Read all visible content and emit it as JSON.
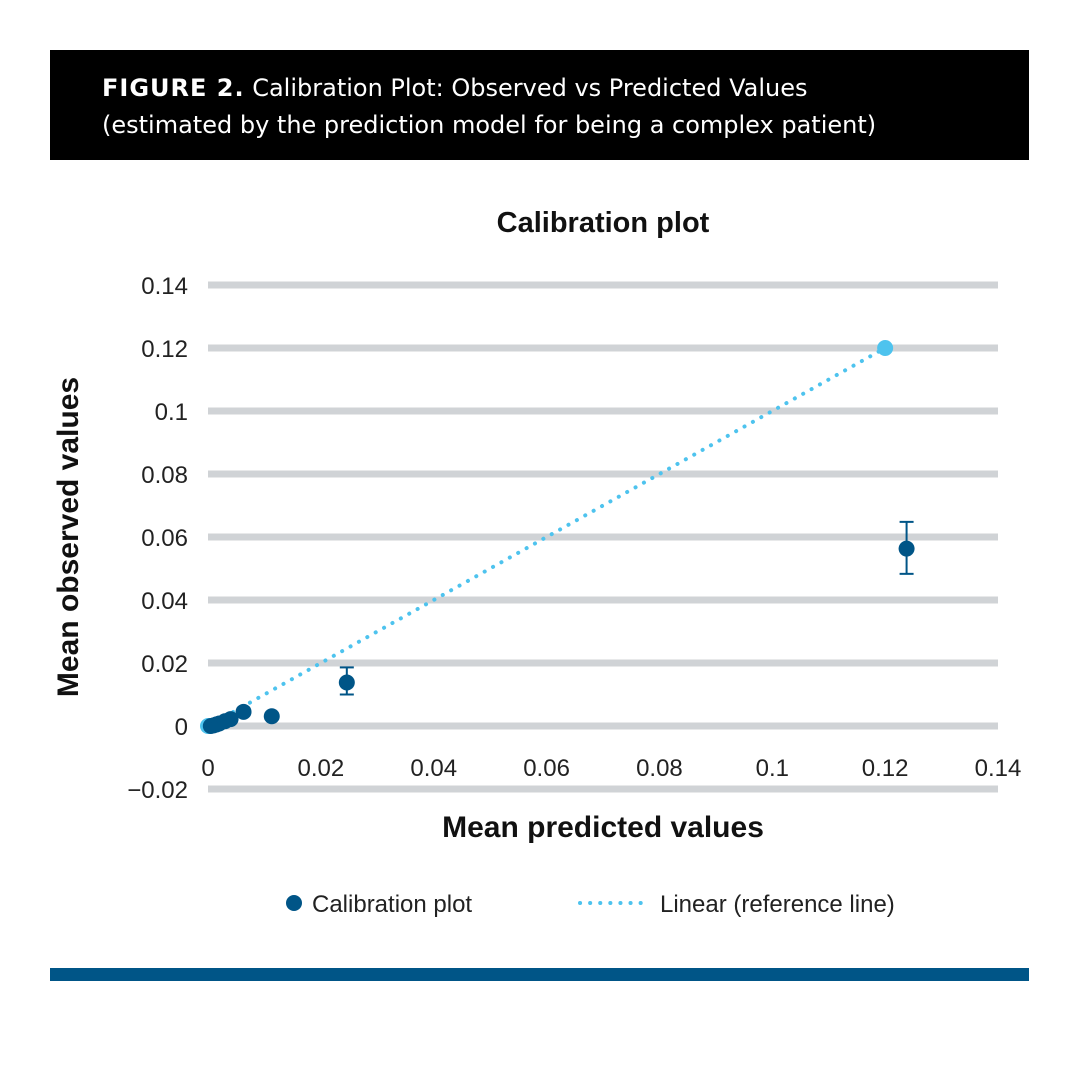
{
  "header": {
    "figure_label": "FIGURE 2.",
    "title": "Calibration Plot: Observed vs Predicted Values",
    "subtitle": "(estimated by the prediction model for being a complex patient)"
  },
  "colors": {
    "points": "#005587",
    "reference": "#4ec3ee",
    "grid": "#d0d3d6",
    "header_bg": "#000000",
    "footer_bar": "#005587"
  },
  "chart_data": {
    "type": "scatter",
    "title": "Calibration plot",
    "xlabel": "Mean predicted values",
    "ylabel": "Mean observed values",
    "xlim": [
      0,
      0.14
    ],
    "ylim": [
      -0.02,
      0.14
    ],
    "x_ticks": [
      "0",
      "0.02",
      "0.04",
      "0.06",
      "0.08",
      "0.1",
      "0.12",
      "0.14"
    ],
    "y_ticks": [
      "−0.02",
      "0",
      "0.02",
      "0.04",
      "0.06",
      "0.08",
      "0.1",
      "0.12",
      "0.14"
    ],
    "y_tick_values": [
      -0.02,
      0,
      0.02,
      0.04,
      0.06,
      0.08,
      0.1,
      0.12,
      0.14
    ],
    "x_tick_values": [
      0,
      0.02,
      0.04,
      0.06,
      0.08,
      0.1,
      0.12,
      0.14
    ],
    "legend_position": "bottom",
    "series": [
      {
        "name": "Calibration plot",
        "kind": "points-with-error-bars",
        "points": [
          {
            "x": 0.0005,
            "y": 0.0,
            "err_low": 0.0,
            "err_high": 0.0
          },
          {
            "x": 0.001,
            "y": 0.0002,
            "err_low": 0.0,
            "err_high": 0.0
          },
          {
            "x": 0.0015,
            "y": 0.0005,
            "err_low": 0.0,
            "err_high": 0.0
          },
          {
            "x": 0.002,
            "y": 0.0008,
            "err_low": 0.0,
            "err_high": 0.0
          },
          {
            "x": 0.003,
            "y": 0.0015,
            "err_low": 0.0,
            "err_high": 0.0
          },
          {
            "x": 0.004,
            "y": 0.0022,
            "err_low": 0.0005,
            "err_high": 0.0005
          },
          {
            "x": 0.0063,
            "y": 0.0045,
            "err_low": 0.001,
            "err_high": 0.001
          },
          {
            "x": 0.0113,
            "y": 0.0031,
            "err_low": 0.0006,
            "err_high": 0.0006
          },
          {
            "x": 0.0246,
            "y": 0.0138,
            "err_low": 0.0038,
            "err_high": 0.0048
          },
          {
            "x": 0.1238,
            "y": 0.0563,
            "err_low": 0.008,
            "err_high": 0.0085
          }
        ]
      },
      {
        "name": "Linear (reference line)",
        "kind": "dotted-line",
        "x": [
          0,
          0.12
        ],
        "y": [
          0,
          0.12
        ]
      }
    ]
  }
}
